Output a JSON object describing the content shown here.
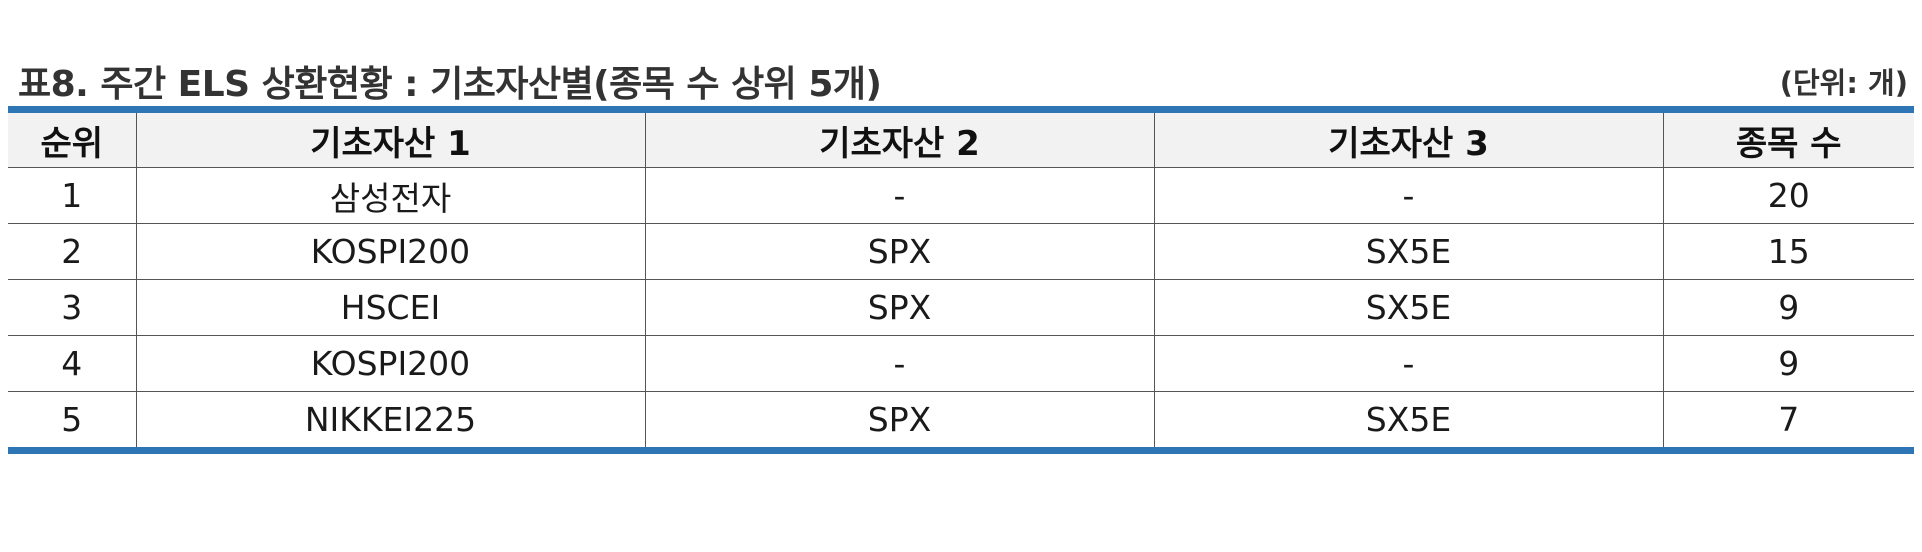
{
  "header": {
    "title": "표8. 주간 ELS 상환현황 : 기초자산별(종목 수 상위 5개)",
    "unit": "(단위: 개)"
  },
  "table": {
    "columns": [
      "순위",
      "기초자산 1",
      "기초자산 2",
      "기초자산 3",
      "종목 수"
    ],
    "rows": [
      [
        "1",
        "삼성전자",
        "-",
        "-",
        "20"
      ],
      [
        "2",
        "KOSPI200",
        "SPX",
        "SX5E",
        "15"
      ],
      [
        "3",
        "HSCEI",
        "SPX",
        "SX5E",
        "9"
      ],
      [
        "4",
        "KOSPI200",
        "-",
        "-",
        "9"
      ],
      [
        "5",
        "NIKKEI225",
        "SPX",
        "SX5E",
        "7"
      ]
    ]
  },
  "colors": {
    "accent_rule": "#2e75b6",
    "header_fill": "#f2f2f2"
  }
}
